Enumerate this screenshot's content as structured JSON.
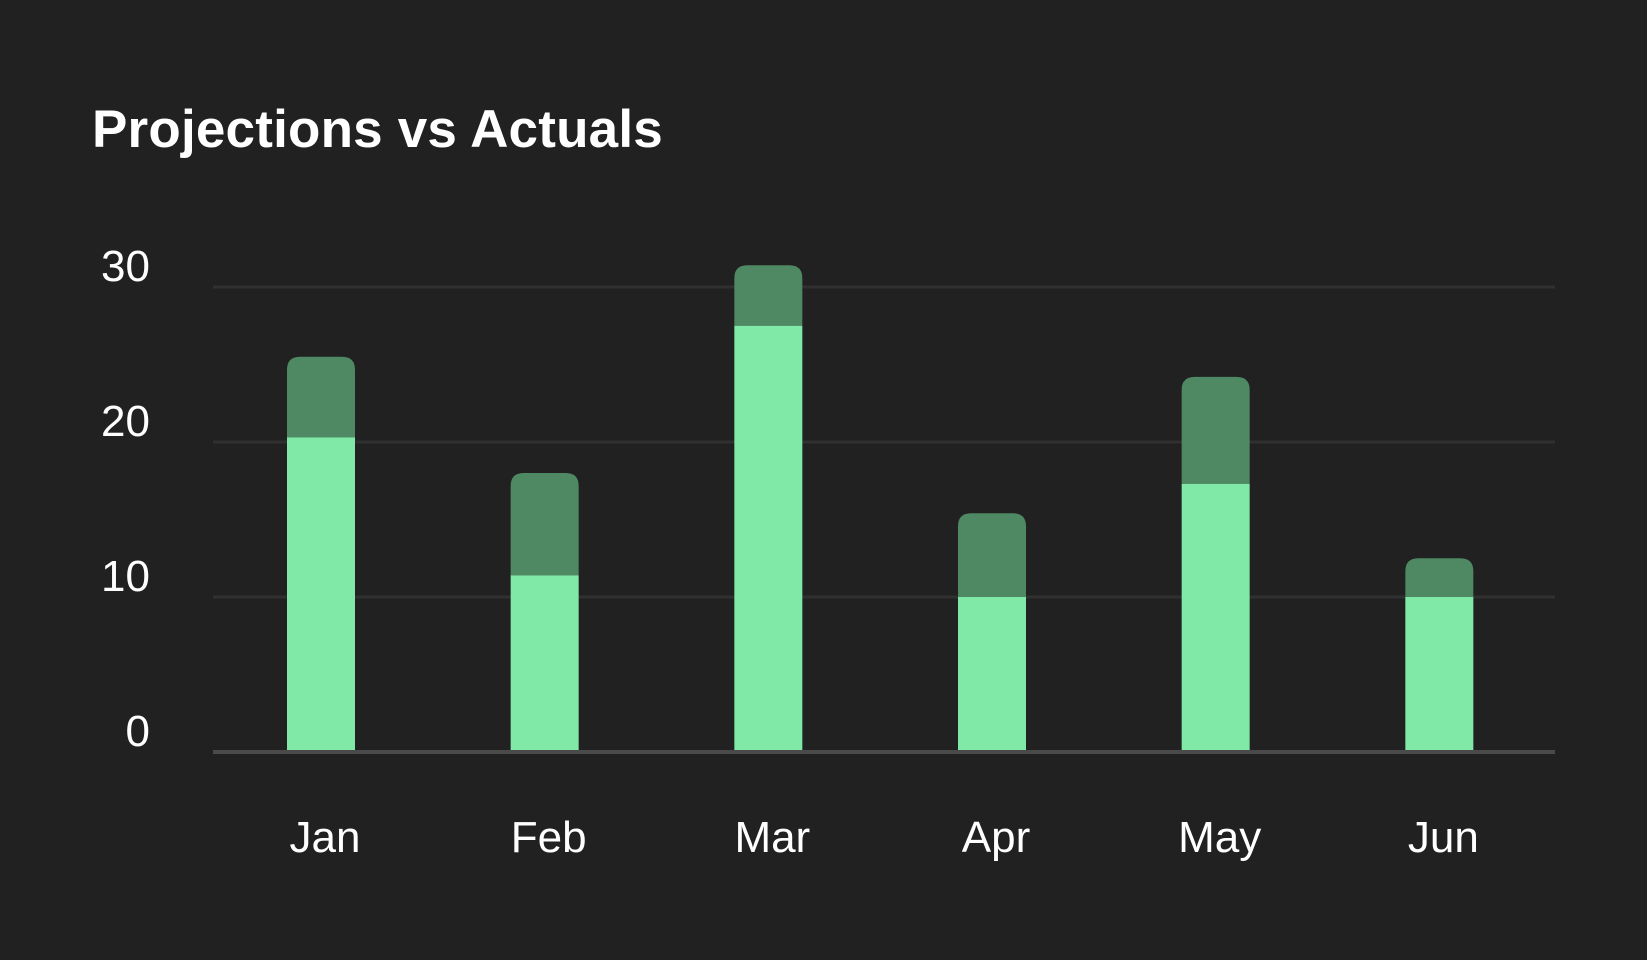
{
  "chart_data": {
    "type": "bar",
    "stacked": true,
    "title": "Projections vs Actuals",
    "xlabel": "",
    "ylabel": "",
    "categories": [
      "Jan",
      "Feb",
      "Mar",
      "Apr",
      "May",
      "Jun"
    ],
    "series": [
      {
        "values": [
          20.3,
          11.4,
          27.5,
          10,
          17.3,
          10
        ],
        "color": "#80E9A8"
      },
      {
        "values": [
          5.2,
          6.6,
          3.9,
          5.4,
          6.9,
          2.5
        ],
        "color": "#4E8964"
      }
    ],
    "yticks": [
      0,
      10,
      20,
      30
    ],
    "ylim": [
      0,
      30
    ],
    "grid": true,
    "legend": "none"
  },
  "colors": {
    "background": "#212121",
    "grid": "#303030",
    "axis": "#4A4A4A",
    "text": "#FFFFFF"
  }
}
